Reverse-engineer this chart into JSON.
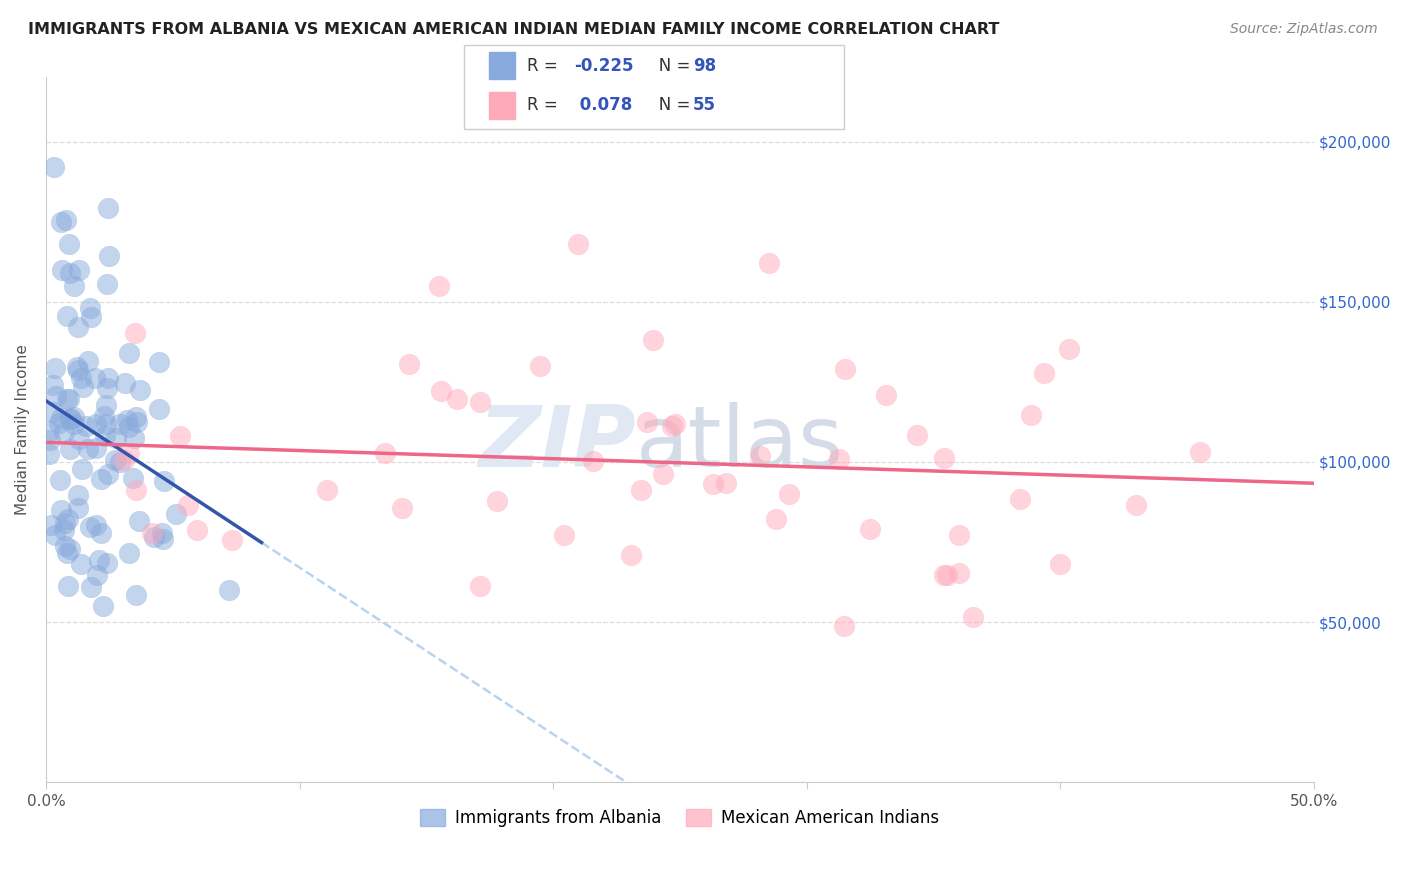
{
  "title": "IMMIGRANTS FROM ALBANIA VS MEXICAN AMERICAN INDIAN MEDIAN FAMILY INCOME CORRELATION CHART",
  "source": "Source: ZipAtlas.com",
  "ylabel": "Median Family Income",
  "xlabel_ticks": [
    "0.0%",
    "",
    "",
    "",
    "",
    "50.0%"
  ],
  "xlabel_vals": [
    0.0,
    0.1,
    0.2,
    0.3,
    0.4,
    0.5
  ],
  "right_ytick_labels": [
    "$50,000",
    "$100,000",
    "$150,000",
    "$200,000"
  ],
  "right_ytick_vals": [
    50000,
    100000,
    150000,
    200000
  ],
  "xlim": [
    0.0,
    0.5
  ],
  "ylim": [
    0,
    220000
  ],
  "legend_series1": "Immigrants from Albania",
  "legend_series2": "Mexican American Indians",
  "color_blue": "#88AADD",
  "color_pink": "#FFAABB",
  "color_blue_line": "#3355AA",
  "color_pink_line": "#EE6688",
  "color_dashed": "#AACCEE",
  "watermark_zip": "ZIP",
  "watermark_atlas": "atlas",
  "blue_R": -0.225,
  "pink_R": 0.078,
  "blue_N": 98,
  "pink_N": 55,
  "seed": 42,
  "legend_R_color": "#3355BB",
  "legend_N_color": "#3355BB",
  "legend_label_color": "#333333"
}
